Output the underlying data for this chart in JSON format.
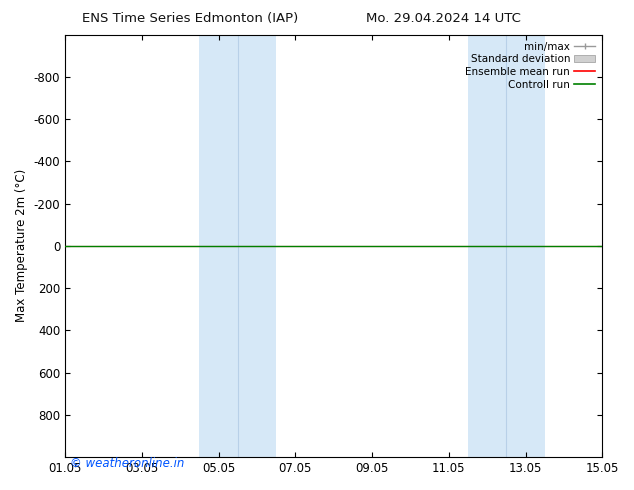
{
  "title_left": "ENS Time Series Edmonton (IAP)",
  "title_right": "Mo. 29.04.2024 14 UTC",
  "ylabel": "Max Temperature 2m (°C)",
  "ylim_bottom": -1000,
  "ylim_top": 1000,
  "yticks": [
    -800,
    -600,
    -400,
    -200,
    0,
    200,
    400,
    600,
    800
  ],
  "xtick_labels": [
    "01.05",
    "03.05",
    "05.05",
    "07.05",
    "09.05",
    "11.05",
    "13.05",
    "15.05"
  ],
  "xtick_positions": [
    0,
    2,
    4,
    6,
    8,
    10,
    12,
    14
  ],
  "x_min": 0,
  "x_max": 14,
  "background_color": "#ffffff",
  "plot_bg_color": "#ffffff",
  "shaded_bands": [
    {
      "x_start": 3.5,
      "x_end": 5.5,
      "color": "#d6e8f7"
    },
    {
      "x_start": 10.5,
      "x_end": 12.5,
      "color": "#d6e8f7"
    }
  ],
  "inner_verticals": [
    4.5,
    11.5
  ],
  "inner_vertical_color": "#b8d0e8",
  "control_run_y": 0,
  "control_run_color": "#008000",
  "ensemble_mean_color": "#ff0000",
  "watermark": "© weatheronline.in",
  "watermark_color": "#0055ff",
  "legend_items": [
    {
      "label": "min/max",
      "color": "#aaaaaa",
      "type": "errorbar"
    },
    {
      "label": "Standard deviation",
      "color": "#cccccc",
      "type": "box"
    },
    {
      "label": "Ensemble mean run",
      "color": "#ff0000",
      "type": "line"
    },
    {
      "label": "Controll run",
      "color": "#008000",
      "type": "line"
    }
  ],
  "border_color": "#000000",
  "font_size": 8.5,
  "title_fontsize": 9.5,
  "invert_yaxis": true
}
